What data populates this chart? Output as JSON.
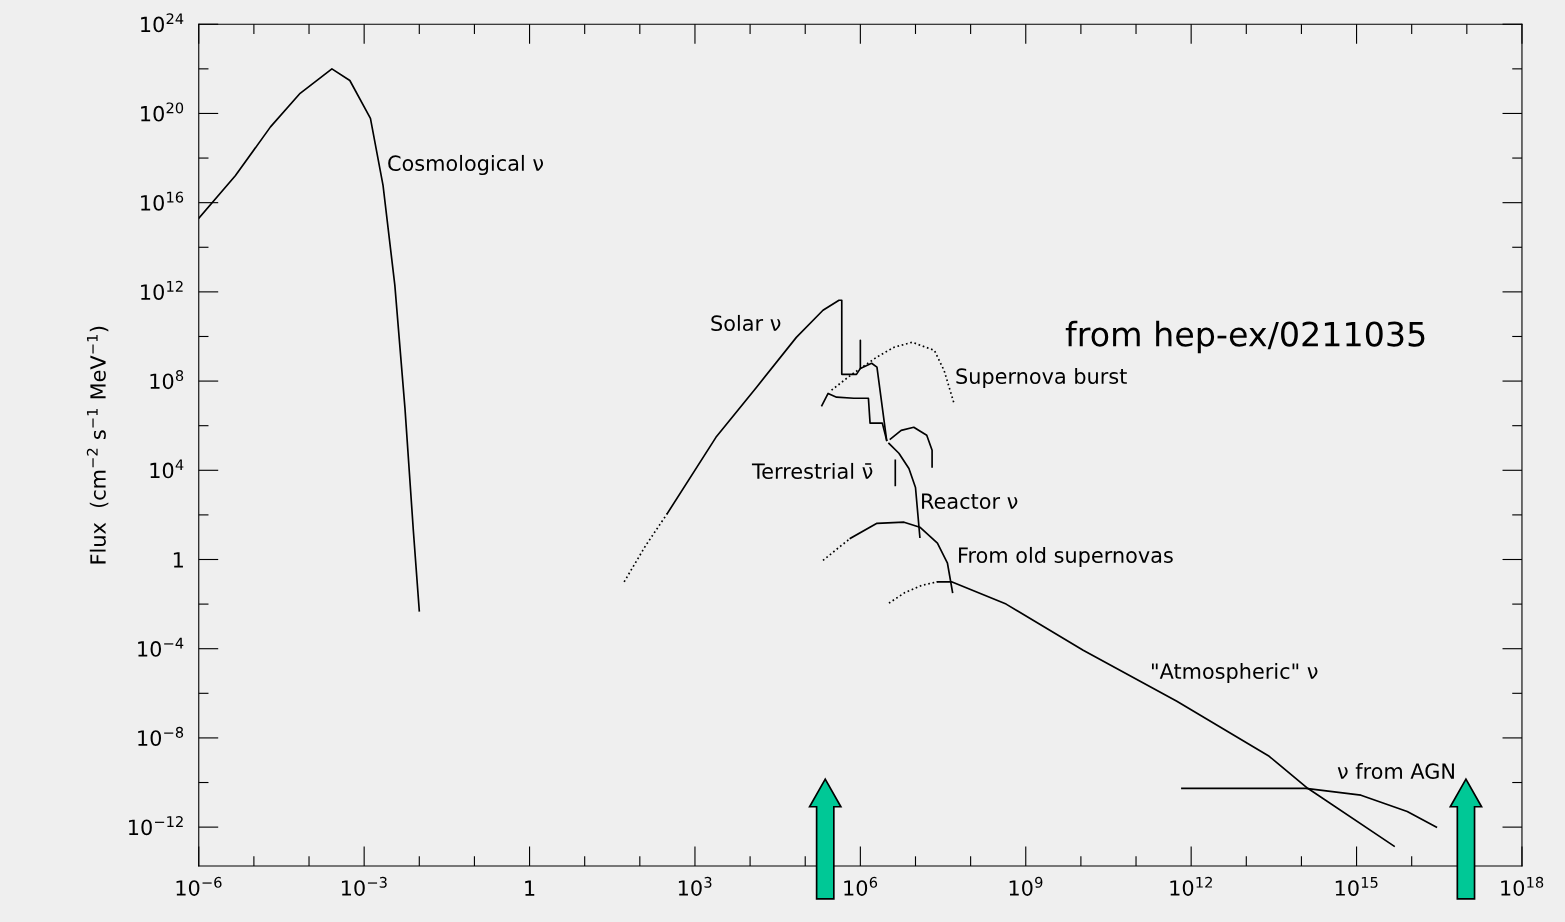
{
  "chart_data": {
    "type": "line",
    "ylabel": "Flux  (cm$^{−2}$ s$^{−1}$ MeV$^{−1}$)",
    "log": "xy",
    "grid": false,
    "xlim": [
      1e-06,
      1e+18
    ],
    "ylim": [
      1.8e-14,
      1e+24
    ],
    "xticks": [
      {
        "value": 1e-06,
        "label": "10$^{−6}$"
      },
      {
        "value": 1e-05,
        "label": null
      },
      {
        "value": 0.0001,
        "label": null
      },
      {
        "value": 0.001,
        "label": "10$^{−3}$"
      },
      {
        "value": 0.01,
        "label": null
      },
      {
        "value": 0.1,
        "label": null
      },
      {
        "value": 1,
        "label": "1"
      },
      {
        "value": 10.0,
        "label": null
      },
      {
        "value": 100.0,
        "label": null
      },
      {
        "value": 1000.0,
        "label": "10$^{3}$"
      },
      {
        "value": 10000.0,
        "label": null
      },
      {
        "value": 100000.0,
        "label": null
      },
      {
        "value": 1000000.0,
        "label": "10$^{6}$"
      },
      {
        "value": 10000000.0,
        "label": null
      },
      {
        "value": 100000000.0,
        "label": null
      },
      {
        "value": 1000000000.0,
        "label": "10$^{9}$"
      },
      {
        "value": 10000000000.0,
        "label": null
      },
      {
        "value": 100000000000.0,
        "label": null
      },
      {
        "value": 1000000000000.0,
        "label": "10$^{12}$"
      },
      {
        "value": 10000000000000.0,
        "label": null
      },
      {
        "value": 100000000000000.0,
        "label": null
      },
      {
        "value": 1000000000000000.0,
        "label": "10$^{15}$"
      },
      {
        "value": 1e+16,
        "label": null
      },
      {
        "value": 1e+17,
        "label": null
      },
      {
        "value": 1e+18,
        "label": "10$^{18}$"
      }
    ],
    "yticks": [
      {
        "value": 1e-12,
        "label": "10$^{−12}$"
      },
      {
        "value": 1e-10,
        "label": null
      },
      {
        "value": 1e-08,
        "label": "10$^{−8}$"
      },
      {
        "value": 1e-06,
        "label": null
      },
      {
        "value": 0.0001,
        "label": "10$^{−4}$"
      },
      {
        "value": 0.01,
        "label": null
      },
      {
        "value": 1,
        "label": "1"
      },
      {
        "value": 100.0,
        "label": null
      },
      {
        "value": 10000.0,
        "label": "10$^{4}$"
      },
      {
        "value": 1000000.0,
        "label": null
      },
      {
        "value": 100000000.0,
        "label": "10$^{8}$"
      },
      {
        "value": 10000000000.0,
        "label": null
      },
      {
        "value": 1000000000000.0,
        "label": "10$^{12}$"
      },
      {
        "value": 100000000000000.0,
        "label": null
      },
      {
        "value": 1e+16,
        "label": "10$^{16}$"
      },
      {
        "value": 1e+18,
        "label": null
      },
      {
        "value": 1e+20,
        "label": "10$^{20}$"
      },
      {
        "value": 1e+22,
        "label": null
      },
      {
        "value": 1e+24,
        "label": "10$^{24}$"
      }
    ],
    "series": [
      {
        "color": "#000000",
        "line_style": "solid",
        "x": [
          1e-06,
          4.6e-06,
          2e-05,
          6.9e-05,
          0.00026,
          0.00055,
          0.0013,
          0.0022,
          0.0036,
          0.0055,
          0.0078,
          0.01
        ],
        "values": [
          2000000000000000.0,
          1.6e+17,
          2.5e+19,
          8e+20,
          1e+22,
          3e+21,
          6e+19,
          6e+16,
          2000000000000.0,
          6000000.0,
          20,
          0.005
        ]
      },
      {
        "color": "#000000",
        "line_style": "dotted",
        "x": [
          52,
          126,
          316
        ],
        "values": [
          0.1,
          4,
          117
        ]
      },
      {
        "color": "#000000",
        "line_style": "solid",
        "x": [
          316,
          2400.0,
          13000.0,
          69000.0,
          210000.0,
          410000.0,
          460000.0,
          460000.0,
          850000.0,
          1000000.0,
          1000000.0,
          1000000.0,
          1600000.0,
          2000000.0,
          3000000.0
        ],
        "values": [
          117,
          300000.0,
          52000000.0,
          9100000000.0,
          150000000000.0,
          420000000000.0,
          420000000000.0,
          200000000.0,
          200000000.0,
          370000000.0,
          6800000000.0,
          370000000.0,
          630000000.0,
          420000000.0,
          220000.0
        ]
      },
      {
        "color": "#000000",
        "line_style": "solid",
        "x": [
          200000.0,
          260000.0,
          370000.0,
          760000.0,
          1400000.0,
          1500000.0,
          2500000.0,
          3000000.0
        ],
        "values": [
          7900000.0,
          28000000.0,
          19000000.0,
          17000000.0,
          17000000.0,
          1300000.0,
          1300000.0,
          220000.0
        ]
      },
      {
        "color": "#000000",
        "line_style": "solid",
        "x": [
          4300000.0,
          4300000.0
        ],
        "values": [
          28000.0,
          2100.0
        ]
      },
      {
        "color": "#000000",
        "line_style": "solid",
        "x": [
          3300000.0,
          5000000.0,
          7600000.0,
          10000000.0,
          11000000.0,
          12000000.0
        ],
        "values": [
          160000.0,
          58000.0,
          12000.0,
          1700.0,
          117,
          10
        ]
      },
      {
        "color": "#000000",
        "line_style": "solid",
        "x": [
          3500000.0,
          5500000.0,
          9300000.0,
          16000000.0,
          20000000.0,
          20000000.0
        ],
        "values": [
          250000.0,
          620000.0,
          850000.0,
          370000.0,
          79000.0,
          14000.0
        ]
      },
      {
        "color": "#000000",
        "line_style": "dotted",
        "x": [
          300000.0,
          660000.0,
          2000000.0,
          4100000.0,
          8700000.0,
          22000000.0,
          33000000.0,
          50000000.0
        ],
        "values": [
          39000000.0,
          180000000.0,
          1200000000.0,
          3300000000.0,
          5500000000.0,
          2400000000.0,
          300000000.0,
          10000000.0
        ]
      },
      {
        "color": "#000000",
        "line_style": "dotted",
        "x": [
          210000.0,
          410000.0,
          660000.0
        ],
        "values": [
          0.91,
          3.5,
          8.9
        ]
      },
      {
        "color": "#000000",
        "line_style": "solid",
        "x": [
          660000.0,
          2000000.0,
          6200000.0,
          12000000.0,
          25000000.0,
          38000000.0,
          47000000.0
        ],
        "values": [
          8.9,
          42,
          47,
          28,
          5.4,
          0.68,
          0.034
        ]
      },
      {
        "color": "#000000",
        "line_style": "dotted",
        "x": [
          3300000.0,
          6300000.0,
          13000000.0,
          25000000.0
        ],
        "values": [
          0.011,
          0.032,
          0.069,
          0.1
        ]
      },
      {
        "color": "#000000",
        "line_style": "solid",
        "x": [
          25000000.0,
          45000000.0,
          440000000.0,
          11000000000.0,
          550000000000.0,
          26000000000000.0,
          130000000000000.0,
          4800000000000000.0
        ],
        "values": [
          0.1,
          0.1,
          0.01,
          8.5e-05,
          4.4e-07,
          1.5e-09,
          5.5e-11,
          1.4e-13
        ]
      },
      {
        "color": "#000000",
        "line_style": "solid",
        "x": [
          680000000000.0,
          120000000000000.0,
          1200000000000000.0,
          8300000000000000.0,
          2.8e+16
        ],
        "values": [
          5.5e-11,
          5.5e-11,
          2.7e-11,
          5e-12,
          1e-12
        ]
      }
    ],
    "annotations": [
      "Cosmological ν",
      "Solar ν",
      "Supernova burst",
      "Terrestrial ν̄",
      "Reactor ν",
      "From old supernovas",
      "\"Atmospheric\" ν",
      "ν from AGN",
      "from hep-ex/0211035"
    ]
  }
}
